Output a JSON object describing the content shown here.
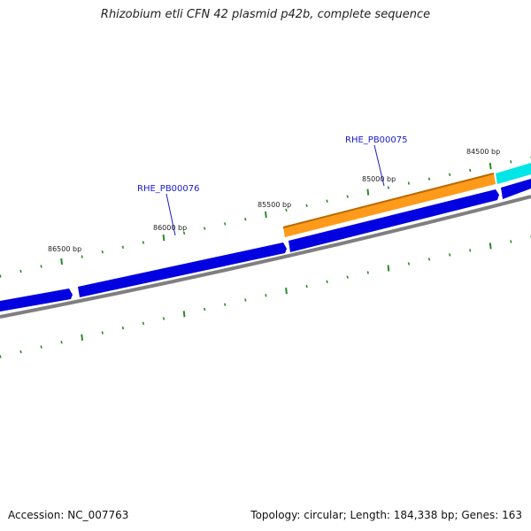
{
  "title": "Rhizobium etli CFN 42 plasmid p42b, complete sequence",
  "footer": {
    "accession": "Accession: NC_007763",
    "info": "Topology: circular; Length: 184,338 bp; Genes: 163"
  },
  "position_labels": [
    "86500 bp",
    "86000 bp",
    "85500 bp",
    "85000 bp",
    "84500 bp"
  ],
  "gene_labels": [
    "RHE_PB00076",
    "RHE_PB00075"
  ],
  "colors": {
    "backbone": "#7f7f7f",
    "cds_forward": "#0000e0",
    "gene_orange": "#ff9a1a",
    "gene_cyan": "#00e5e5",
    "tick": "#2a8a2a",
    "label_line": "#1a1acc"
  },
  "icons": {}
}
